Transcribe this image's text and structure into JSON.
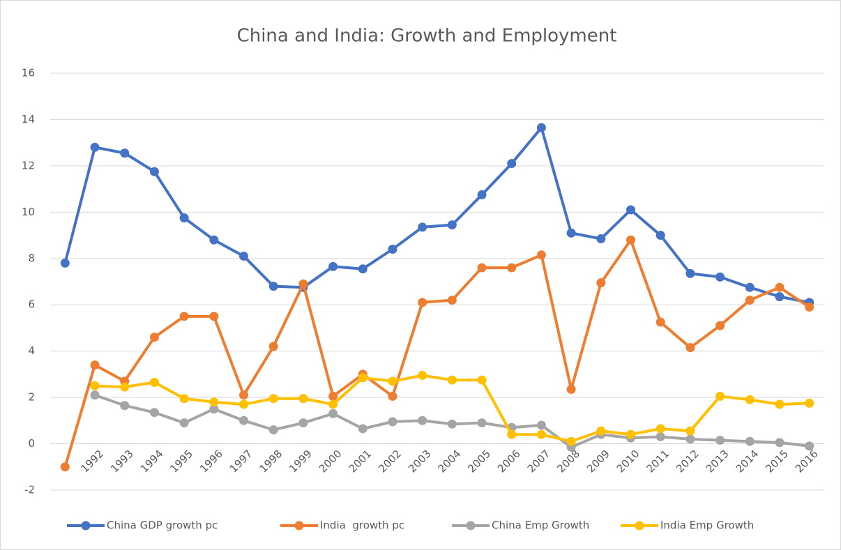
{
  "chart_data": {
    "type": "line",
    "title": "China and India: Growth and Employment",
    "categories": [
      null,
      "1992",
      "1993",
      "1994",
      "1995",
      "1996",
      "1997",
      "1998",
      "1999",
      "2000",
      "2001",
      "2002",
      "2003",
      "2004",
      "2005",
      "2006",
      "2007",
      "2008",
      "2009",
      "2010",
      "2011",
      "2012",
      "2013",
      "2014",
      "2015",
      "2016"
    ],
    "series": [
      {
        "name": "China GDP growth pc",
        "color": "#4472c4",
        "values": [
          7.8,
          12.8,
          12.55,
          11.75,
          9.75,
          8.8,
          8.1,
          6.8,
          6.75,
          7.65,
          7.55,
          8.4,
          9.35,
          9.45,
          10.75,
          12.1,
          13.65,
          9.1,
          8.85,
          10.1,
          9.0,
          7.35,
          7.2,
          6.75,
          6.35,
          6.1
        ]
      },
      {
        "name": "India  growth pc",
        "color": "#ed7d31",
        "values": [
          -1.0,
          3.4,
          2.7,
          4.6,
          5.5,
          5.5,
          2.1,
          4.2,
          6.9,
          2.05,
          3.0,
          2.05,
          6.1,
          6.2,
          7.6,
          7.6,
          8.15,
          2.35,
          6.95,
          8.8,
          5.25,
          4.15,
          5.1,
          6.2,
          6.75,
          5.9
        ]
      },
      {
        "name": "China Emp Growth",
        "color": "#a5a5a5",
        "values": [
          null,
          2.1,
          1.65,
          1.35,
          0.9,
          1.5,
          1.0,
          0.6,
          0.9,
          1.3,
          0.65,
          0.95,
          1.0,
          0.85,
          0.9,
          0.7,
          0.8,
          -0.15,
          0.4,
          0.25,
          0.3,
          0.2,
          0.15,
          0.1,
          0.05,
          -0.1
        ]
      },
      {
        "name": "India Emp Growth",
        "color": "#ffc000",
        "values": [
          null,
          2.5,
          2.45,
          2.65,
          1.95,
          1.8,
          1.7,
          1.95,
          1.95,
          1.7,
          2.85,
          2.7,
          2.95,
          2.75,
          2.75,
          0.4,
          0.4,
          0.1,
          0.55,
          0.4,
          0.65,
          0.55,
          2.05,
          1.9,
          1.7,
          1.75
        ]
      }
    ],
    "ylim": [
      -2,
      16
    ],
    "yticks": [
      -2,
      0,
      2,
      4,
      6,
      8,
      10,
      12,
      14,
      16
    ],
    "grid": true,
    "legend": "bottom"
  }
}
